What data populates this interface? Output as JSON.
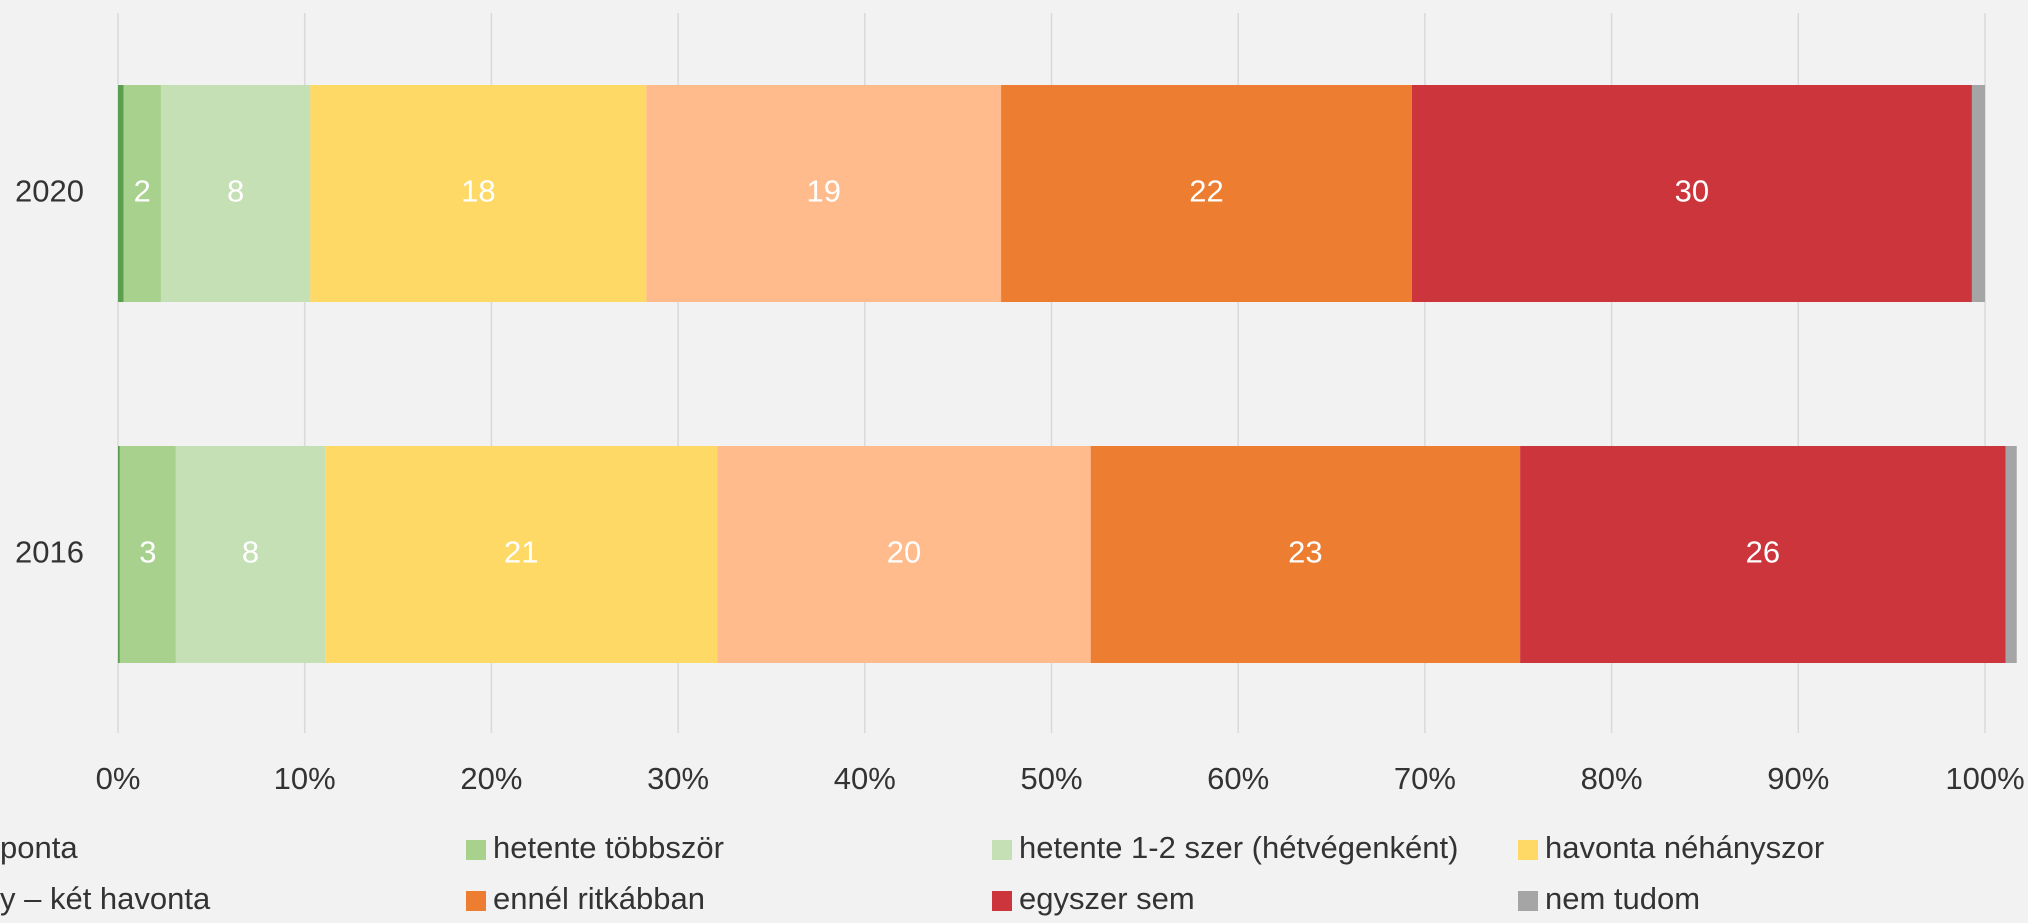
{
  "chart_data": {
    "type": "stacked-bar-horizontal",
    "categories": [
      "2020",
      "2016"
    ],
    "series": [
      {
        "name": "ponta",
        "color": "#5b9e4f",
        "values": [
          0.3,
          0.1
        ]
      },
      {
        "name": "hetente többször",
        "color": "#a9d18e",
        "values": [
          2,
          3
        ]
      },
      {
        "name": "hetente 1-2 szer (hétvégenként)",
        "color": "#c5e0b4",
        "values": [
          8,
          8
        ]
      },
      {
        "name": "havonta néhányszor",
        "color": "#ffd966",
        "values": [
          18,
          21
        ]
      },
      {
        "name": "y – két havonta",
        "color": "#ffbb8c",
        "values": [
          19,
          20
        ]
      },
      {
        "name": "ennél ritkábban",
        "color": "#ed7d31",
        "values": [
          22,
          23
        ]
      },
      {
        "name": "egyszer sem",
        "color": "#cc353b",
        "values": [
          30,
          26
        ]
      },
      {
        "name": "nem tudom",
        "color": "#a5a5a5",
        "values": [
          0.7,
          0.6
        ]
      }
    ],
    "xlim": [
      0,
      100
    ],
    "xticks": [
      {
        "value": 0,
        "label": "0%"
      },
      {
        "value": 10,
        "label": "10%"
      },
      {
        "value": 20,
        "label": "20%"
      },
      {
        "value": 30,
        "label": "30%"
      },
      {
        "value": 40,
        "label": "40%"
      },
      {
        "value": 50,
        "label": "50%"
      },
      {
        "value": 60,
        "label": "60%"
      },
      {
        "value": 70,
        "label": "70%"
      },
      {
        "value": 80,
        "label": "80%"
      },
      {
        "value": 90,
        "label": "90%"
      },
      {
        "value": 100,
        "label": "100%"
      }
    ],
    "grid": true,
    "legend": "bottom"
  }
}
